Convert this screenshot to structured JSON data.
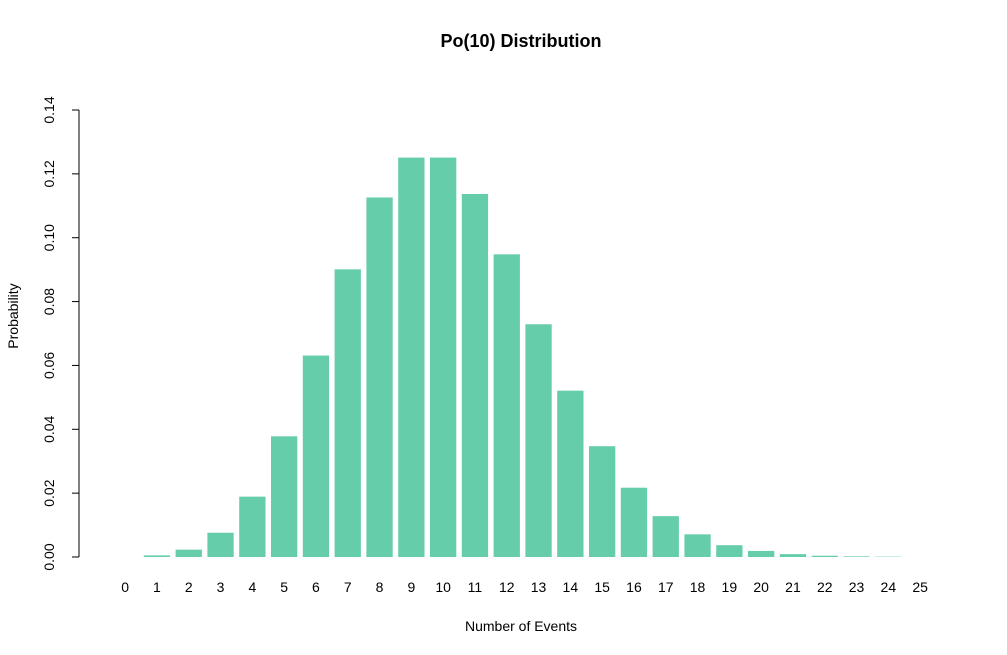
{
  "chart_data": {
    "type": "bar",
    "title": "Po(10) Distribution",
    "xlabel": "Number of Events",
    "ylabel": "Probability",
    "categories": [
      "0",
      "1",
      "2",
      "3",
      "4",
      "5",
      "6",
      "7",
      "8",
      "9",
      "10",
      "11",
      "12",
      "13",
      "14",
      "15",
      "16",
      "17",
      "18",
      "19",
      "20",
      "21",
      "22",
      "23",
      "24",
      "25"
    ],
    "values": [
      0.0,
      0.0005,
      0.0023,
      0.0076,
      0.0189,
      0.0378,
      0.0631,
      0.0901,
      0.1126,
      0.1251,
      0.1251,
      0.1137,
      0.0948,
      0.0729,
      0.0521,
      0.0347,
      0.0217,
      0.0128,
      0.0071,
      0.0037,
      0.0019,
      0.0009,
      0.0004,
      0.0002,
      0.0001,
      0.0
    ],
    "ylim": [
      0,
      0.14
    ],
    "yticks": [
      "0.00",
      "0.02",
      "0.04",
      "0.06",
      "0.08",
      "0.10",
      "0.12",
      "0.14"
    ],
    "grid": false,
    "bar_color": "#66CDAA"
  }
}
